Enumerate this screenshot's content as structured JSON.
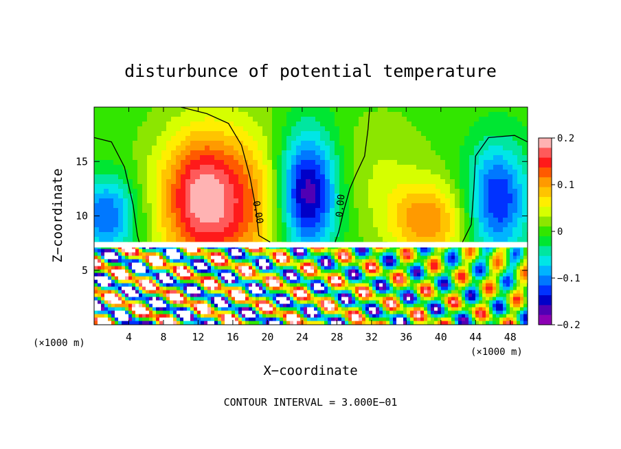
{
  "chart_data": {
    "type": "heatmap",
    "title": "disturbunce of potential temperature",
    "xlabel": "X−coordinate",
    "ylabel": "Z−coordinate",
    "x_unit_left": "(×1000 m)",
    "x_unit_right": "(×1000 m)",
    "xlim": [
      0,
      50
    ],
    "ylim": [
      0,
      20
    ],
    "x_ticks": [
      4,
      8,
      12,
      16,
      20,
      24,
      28,
      32,
      36,
      40,
      44,
      48
    ],
    "y_ticks": [
      5,
      10,
      15
    ],
    "colorbar": {
      "vmin": -0.2,
      "vmax": 0.2,
      "ticks": [
        0.2,
        0.1,
        0,
        -0.1,
        -0.2
      ],
      "tick_labels": [
        "0.2",
        "0.1",
        "0",
        "−0.1",
        "−0.2"
      ],
      "colors": [
        "#ffb3b3",
        "#ff5a5a",
        "#ff1a1a",
        "#ff5a00",
        "#ff9a00",
        "#ffc400",
        "#ffee00",
        "#d6ff00",
        "#8ce600",
        "#32e600",
        "#00e632",
        "#00e6a0",
        "#00e6e6",
        "#00b4ff",
        "#0078ff",
        "#0032ff",
        "#0000c8",
        "#5000b4",
        "#8c00b4"
      ]
    },
    "contour_labels": [
      "0.00",
      "0.00"
    ],
    "contour_interval": "CONTOUR INTERVAL = 3.000E−01"
  }
}
